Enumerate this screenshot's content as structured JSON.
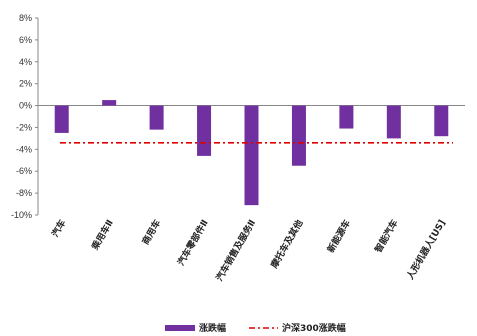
{
  "chart_data": {
    "type": "bar",
    "categories": [
      "汽车",
      "乘用车Ⅱ",
      "商用车",
      "汽车零部件Ⅱ",
      "汽车销售及服务Ⅱ",
      "摩托车及其他",
      "新能源车",
      "智能汽车",
      "人形机器人[US]"
    ],
    "series": [
      {
        "name": "涨跌幅",
        "type": "bar",
        "values": [
          -2.5,
          0.5,
          -2.2,
          -4.6,
          -9.1,
          -5.5,
          -2.1,
          -3.0,
          -2.8
        ],
        "color": "#7030a0"
      },
      {
        "name": "沪深300涨跌幅",
        "type": "line",
        "value": -3.4,
        "color": "#e00000"
      }
    ],
    "ylim": [
      -10,
      8
    ],
    "yticks": [
      8,
      6,
      4,
      2,
      0,
      -2,
      -4,
      -6,
      -8,
      -10
    ],
    "ytick_labels": [
      "8%",
      "6%",
      "4%",
      "2%",
      "0%",
      "-2%",
      "-4%",
      "-6%",
      "-8%",
      "-10%"
    ],
    "legend_position": "bottom",
    "grid": false
  }
}
